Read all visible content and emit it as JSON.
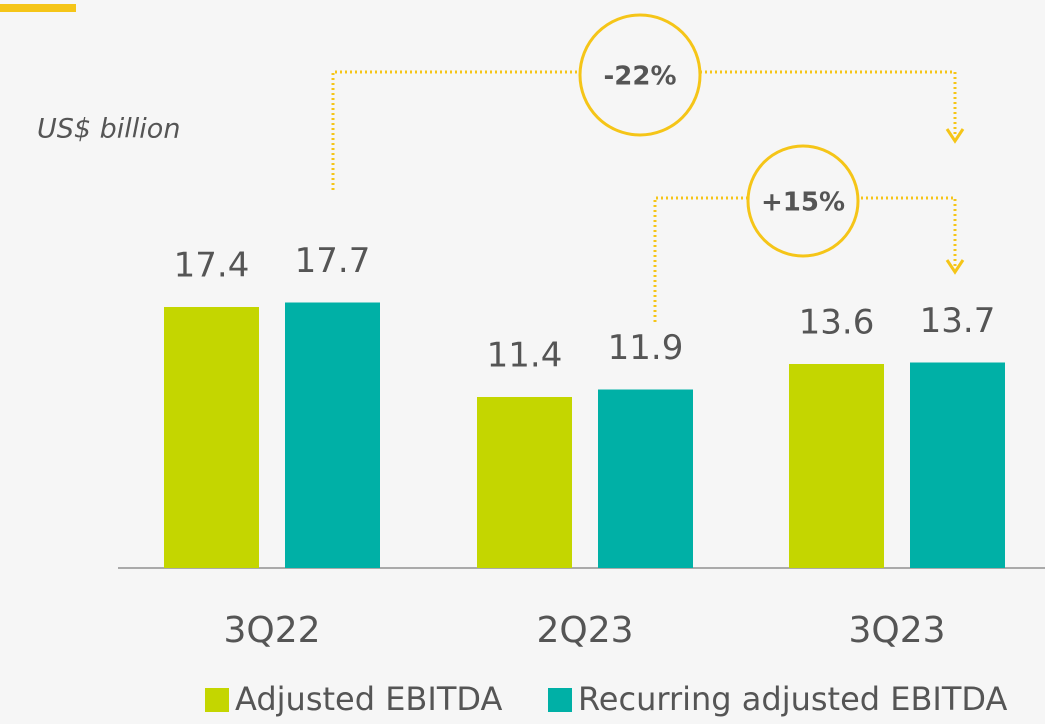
{
  "chart_data": {
    "type": "bar",
    "subtitle": "US$ billion",
    "categories": [
      "3Q22",
      "2Q23",
      "3Q23"
    ],
    "series": [
      {
        "name": "Adjusted EBITDA",
        "color": "#c4d600",
        "values": [
          17.4,
          11.4,
          13.6
        ]
      },
      {
        "name": "Recurring adjusted EBITDA",
        "color": "#00b0a6",
        "values": [
          17.7,
          11.9,
          13.7
        ]
      }
    ],
    "annotations": [
      {
        "label": "-22%",
        "from": "3Q22",
        "to": "3Q23"
      },
      {
        "label": "+15%",
        "from": "2Q23",
        "to": "3Q23"
      }
    ]
  }
}
